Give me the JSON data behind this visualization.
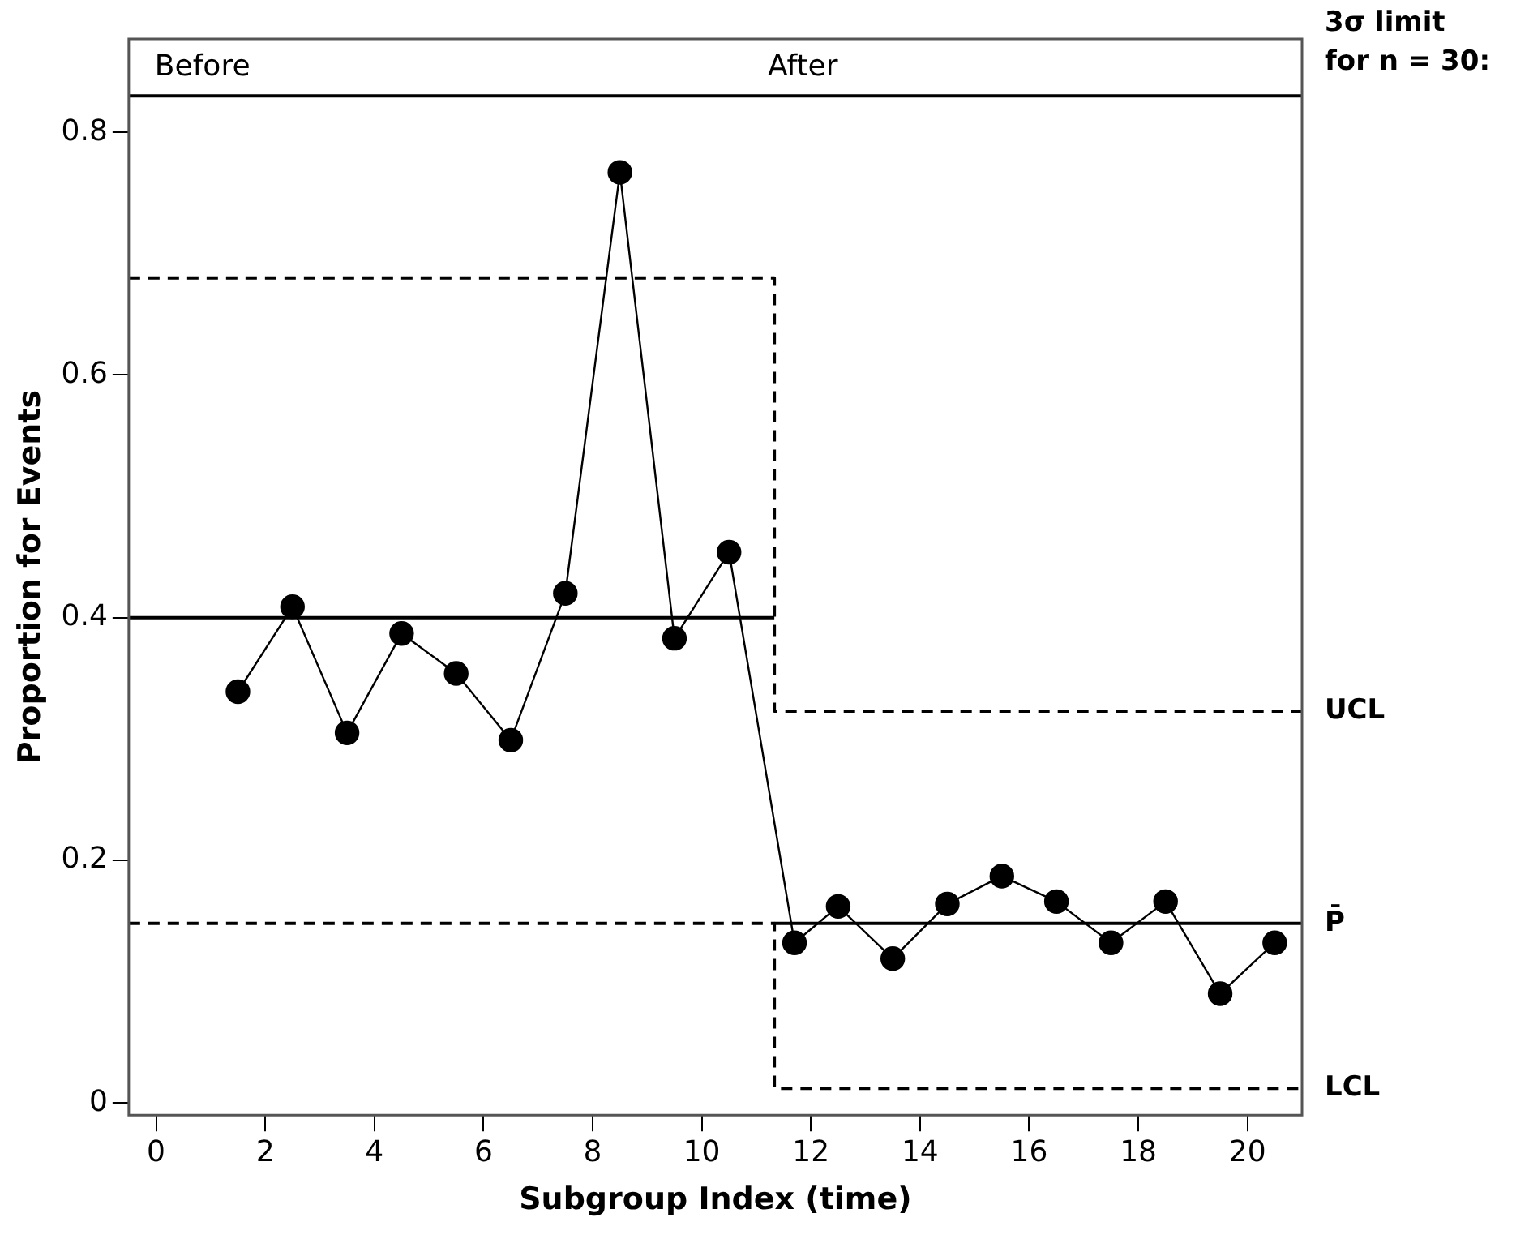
{
  "chart_data": {
    "type": "line",
    "xlabel": "Subgroup Index (time)",
    "ylabel": "Proportion for Events",
    "xlim": [
      -0.5,
      21
    ],
    "xticks": [
      0,
      2,
      4,
      6,
      8,
      10,
      12,
      14,
      16,
      18,
      20
    ],
    "ylim": [
      -0.01,
      0.877
    ],
    "yticks": [
      0,
      0.2,
      0.4,
      0.6,
      0.8
    ],
    "grid": false,
    "legend": false,
    "series": [
      {
        "type": "line",
        "color": "#000000",
        "marker": "circle",
        "line_style": "solid",
        "x": [
          1.5,
          2.5,
          3.5,
          4.5,
          5.5,
          6.5,
          7.5,
          8.5,
          9.5,
          10.5,
          11.7,
          12.5,
          13.5,
          14.5,
          15.5,
          16.5,
          17.5,
          18.5,
          19.5,
          20.5
        ],
        "values": [
          0.339,
          0.409,
          0.305,
          0.387,
          0.354,
          0.299,
          0.42,
          0.767,
          0.383,
          0.454,
          0.132,
          0.162,
          0.119,
          0.164,
          0.187,
          0.166,
          0.132,
          0.166,
          0.09,
          0.132
        ]
      },
      {
        "type": "line",
        "name": "UCL",
        "color": "#000000",
        "marker": "none",
        "line_style": "dashed",
        "x": [
          -0.5,
          11.33,
          11.33,
          21
        ],
        "values": [
          0.68,
          0.68,
          0.323,
          0.323
        ]
      },
      {
        "type": "line",
        "color": "#000000",
        "marker": "none",
        "line_style": "solid",
        "x": [
          -0.5,
          11.33
        ],
        "values": [
          0.4,
          0.4
        ]
      },
      {
        "type": "line",
        "name": "P̄",
        "color": "#000000",
        "marker": "none",
        "line_style": "solid",
        "x": [
          11.33,
          21
        ],
        "values": [
          0.148,
          0.148
        ]
      },
      {
        "type": "line",
        "name": "LCL",
        "color": "#000000",
        "marker": "none",
        "line_style": "dashed",
        "x": [
          -0.5,
          11.33,
          11.33,
          21
        ],
        "values": [
          0.148,
          0.148,
          0.012,
          0.012
        ]
      }
    ],
    "ref_lines": [
      {
        "axis": "y",
        "value": 0.83,
        "color": "#000000",
        "line_style": "solid"
      }
    ],
    "annotations": [
      "Before",
      "After",
      "3σ limit\nfor n = 30:"
    ]
  }
}
